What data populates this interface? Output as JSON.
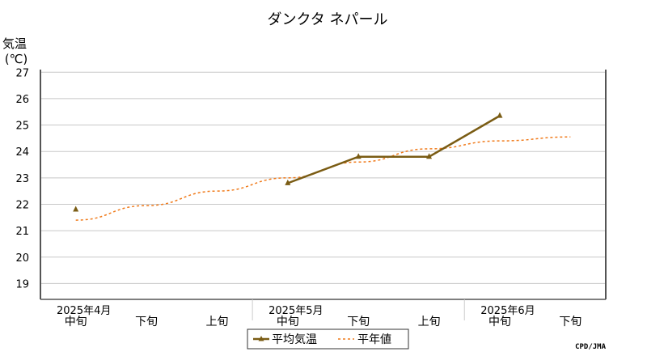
{
  "chart_data": {
    "type": "line",
    "title": "ダンクタ ネパール",
    "ylabel_line1": "気温",
    "ylabel_line2": "(℃)",
    "ylim": [
      18.4,
      27.1
    ],
    "yticks": [
      19,
      20,
      21,
      22,
      23,
      24,
      25,
      26,
      27
    ],
    "grid": true,
    "categories": [
      "中旬",
      "下旬",
      "上旬",
      "中旬",
      "下旬",
      "上旬",
      "中旬",
      "下旬"
    ],
    "month_labels": [
      {
        "label": "2025年4月",
        "index": 0
      },
      {
        "label": "2025年5月",
        "index": 3
      },
      {
        "label": "2025年6月",
        "index": 6
      }
    ],
    "series": [
      {
        "name": "平均気温",
        "style": "solid",
        "color": "#7a5c14",
        "marker": "triangle",
        "values": [
          21.8,
          null,
          null,
          22.8,
          23.8,
          23.8,
          25.35,
          null
        ]
      },
      {
        "name": "平年値",
        "style": "dashed",
        "color": "#f07a1a",
        "values": [
          21.4,
          21.95,
          22.5,
          23.0,
          23.6,
          24.1,
          24.4,
          24.55
        ]
      }
    ],
    "legend_position": "bottom",
    "credit": "CPD/JMA"
  }
}
